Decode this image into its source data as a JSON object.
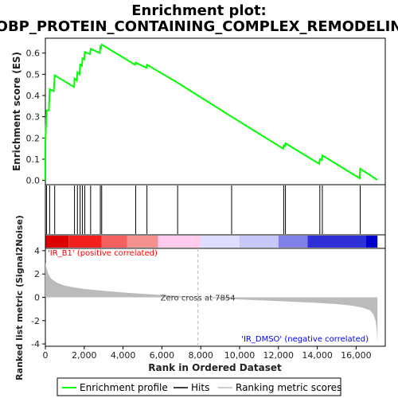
{
  "colors": {
    "enrichment_line": "#00ff00",
    "hits": "#000000",
    "metric_fill": "#bbbbbb",
    "positive_text": "#ff0000",
    "negative_text": "#0000ff",
    "zero_line": "#bbbbbb",
    "heat_positive": "#dd0000",
    "heat_negative": "#0000cc"
  },
  "chart_data": [
    {
      "type": "line",
      "title": "Enrichment plot:",
      "subtitle": "GOBP_PROTEIN_CONTAINING_COMPLEX_REMODELING",
      "ylabel": "Enrichment score (ES)",
      "xlim": [
        0,
        17500
      ],
      "ylim": [
        -0.02,
        0.67
      ],
      "y_ticks": [
        0.0,
        0.1,
        0.2,
        0.3,
        0.4,
        0.5,
        0.6
      ],
      "y_tick_labels": [
        "0.0",
        "0.1",
        "0.2",
        "0.3",
        "0.4",
        "0.5",
        "0.6"
      ],
      "grid": false,
      "series": [
        {
          "name": "Enrichment profile",
          "points": [
            [
              0,
              0.0
            ],
            [
              1,
              0.18
            ],
            [
              60,
              0.33
            ],
            [
              180,
              0.33
            ],
            [
              220,
              0.43
            ],
            [
              430,
              0.42
            ],
            [
              480,
              0.495
            ],
            [
              1480,
              0.44
            ],
            [
              1500,
              0.48
            ],
            [
              1620,
              0.47
            ],
            [
              1650,
              0.51
            ],
            [
              1760,
              0.5
            ],
            [
              1790,
              0.545
            ],
            [
              1880,
              0.54
            ],
            [
              1910,
              0.575
            ],
            [
              2000,
              0.57
            ],
            [
              2030,
              0.605
            ],
            [
              2300,
              0.595
            ],
            [
              2330,
              0.62
            ],
            [
              2800,
              0.6
            ],
            [
              2830,
              0.63
            ],
            [
              2870,
              0.625
            ],
            [
              2900,
              0.64
            ],
            [
              4620,
              0.545
            ],
            [
              4650,
              0.555
            ],
            [
              5200,
              0.53
            ],
            [
              5230,
              0.545
            ],
            [
              6810,
              0.46
            ],
            [
              9590,
              0.3
            ],
            [
              12240,
              0.15
            ],
            [
              12270,
              0.165
            ],
            [
              12330,
              0.162
            ],
            [
              12360,
              0.175
            ],
            [
              14100,
              0.078
            ],
            [
              14130,
              0.1
            ],
            [
              14230,
              0.095
            ],
            [
              14260,
              0.118
            ],
            [
              16180,
              0.01
            ],
            [
              16210,
              0.055
            ],
            [
              17100,
              0.002
            ]
          ]
        }
      ],
      "hits": [
        60,
        220,
        480,
        1500,
        1650,
        1790,
        1910,
        2030,
        2330,
        2830,
        2900,
        4650,
        5230,
        6810,
        9590,
        12270,
        12360,
        14130,
        14260,
        16210
      ]
    },
    {
      "type": "heatmap",
      "description_colors": [
        "#dd0000",
        "#ff5555",
        "#ff9999",
        "#ffccee",
        "#ddddff",
        "#9999ee",
        "#5555dd",
        "#0000cc"
      ],
      "bands": [
        {
          "from": 0,
          "to": 1200,
          "level": 0
        },
        {
          "from": 1200,
          "to": 2900,
          "level": 1
        },
        {
          "from": 2900,
          "to": 4200,
          "level": 2
        },
        {
          "from": 4200,
          "to": 5800,
          "level": 3
        },
        {
          "from": 5800,
          "to": 8000,
          "level": 4
        },
        {
          "from": 8000,
          "to": 10000,
          "level": 5
        },
        {
          "from": 10000,
          "to": 12000,
          "level": 6
        },
        {
          "from": 12000,
          "to": 13500,
          "level": 7
        },
        {
          "from": 13500,
          "to": 16500,
          "level": 8
        },
        {
          "from": 16500,
          "to": 17100,
          "level": 9
        }
      ]
    },
    {
      "type": "area",
      "xlabel": "Rank in Ordered Dataset",
      "ylabel": "Ranked list metric (Signal2Noise)",
      "xlim": [
        0,
        17500
      ],
      "ylim": [
        -4.2,
        4.2
      ],
      "x_ticks": [
        0,
        2000,
        4000,
        6000,
        8000,
        10000,
        12000,
        14000,
        16000
      ],
      "x_tick_labels": [
        "0",
        "2,000",
        "4,000",
        "6,000",
        "8,000",
        "10,000",
        "12,000",
        "14,000",
        "16,000"
      ],
      "y_ticks": [
        -4,
        -2,
        0,
        2,
        4
      ],
      "y_tick_labels": [
        "-4",
        "-2",
        "0",
        "2",
        "4"
      ],
      "zero_cross": 7854,
      "zero_cross_label": "Zero cross at 7854",
      "positive_label": "'IR_B1' (positive correlated)",
      "negative_label": "'IR_DMSO' (negative correlated)",
      "points": [
        [
          0,
          3.0
        ],
        [
          50,
          2.6
        ],
        [
          150,
          2.0
        ],
        [
          300,
          1.6
        ],
        [
          600,
          1.25
        ],
        [
          1000,
          1.0
        ],
        [
          1500,
          0.85
        ],
        [
          2000,
          0.72
        ],
        [
          3000,
          0.55
        ],
        [
          4000,
          0.42
        ],
        [
          5000,
          0.3
        ],
        [
          6000,
          0.2
        ],
        [
          7000,
          0.1
        ],
        [
          7854,
          0.0
        ],
        [
          9000,
          -0.1
        ],
        [
          10000,
          -0.18
        ],
        [
          11000,
          -0.25
        ],
        [
          12000,
          -0.32
        ],
        [
          13000,
          -0.4
        ],
        [
          14000,
          -0.48
        ],
        [
          15000,
          -0.58
        ],
        [
          15800,
          -0.72
        ],
        [
          16300,
          -0.88
        ],
        [
          16700,
          -1.1
        ],
        [
          16900,
          -1.5
        ],
        [
          17000,
          -2.0
        ],
        [
          17060,
          -2.8
        ],
        [
          17100,
          -3.9
        ]
      ]
    }
  ],
  "legend": {
    "items": [
      {
        "label": "Enrichment profile",
        "color": "#00ff00"
      },
      {
        "label": "Hits",
        "color": "#000000"
      },
      {
        "label": "Ranking metric scores",
        "color": "#bbbbbb"
      }
    ]
  }
}
